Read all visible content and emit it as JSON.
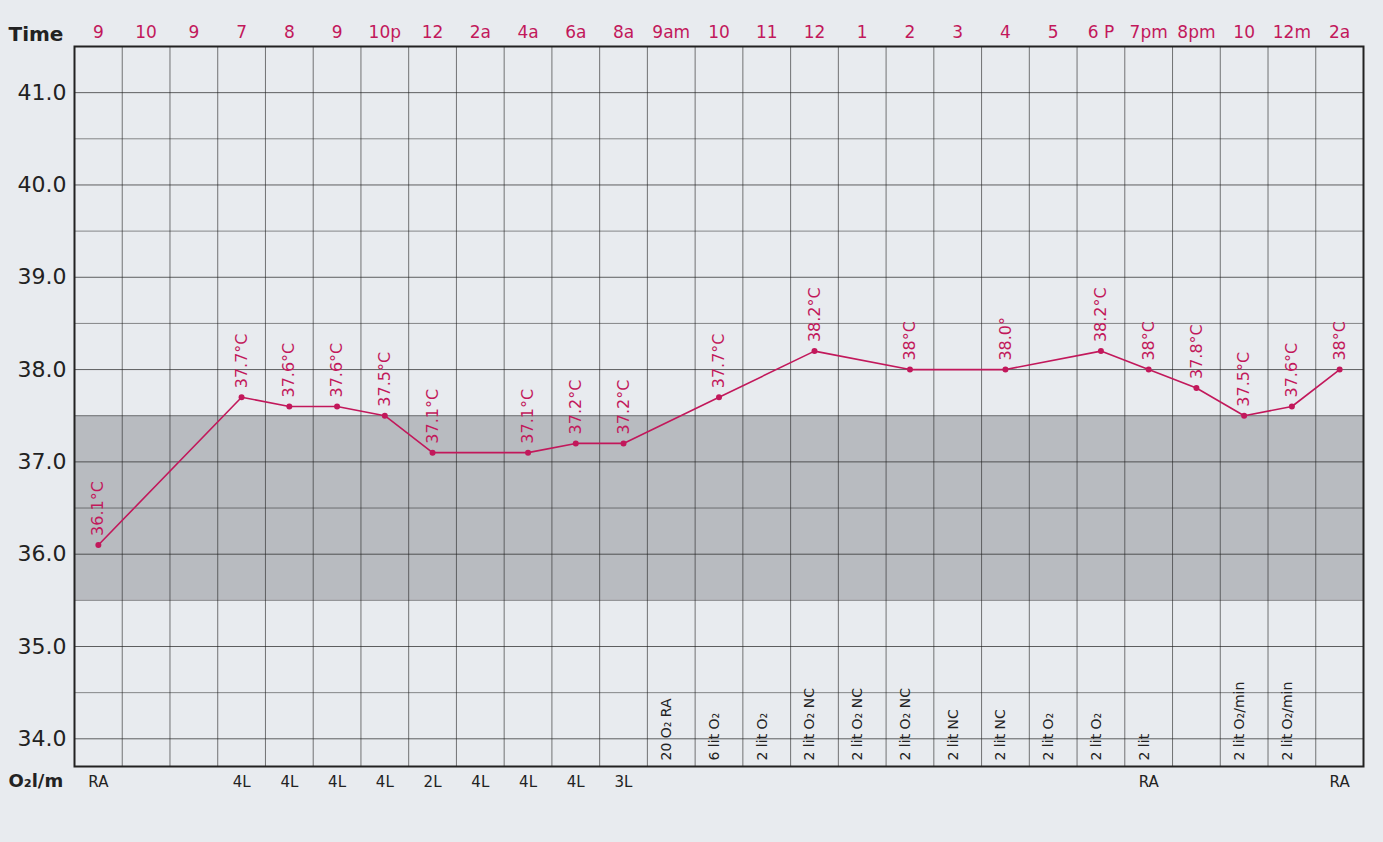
{
  "chart_data": {
    "type": "line",
    "x_label": "Time",
    "categories": [
      "9",
      "10",
      "9",
      "7",
      "8",
      "9",
      "10p",
      "12",
      "2a",
      "4a",
      "6a",
      "8a",
      "9am",
      "10",
      "11",
      "12",
      "1",
      "2",
      "3",
      "4",
      "5",
      "6 P",
      "7pm",
      "8pm",
      "10",
      "12m",
      "2a"
    ],
    "values": [
      36.1,
      null,
      null,
      37.7,
      37.6,
      37.6,
      37.5,
      37.1,
      null,
      37.1,
      37.2,
      37.2,
      null,
      37.7,
      null,
      38.2,
      null,
      38,
      null,
      38.0,
      null,
      38.2,
      38,
      37.8,
      37.5,
      37.6,
      38
    ],
    "value_labels": [
      "36.1°C",
      null,
      null,
      "37.7°C",
      "37.6°C",
      "37.6°C",
      "37.5°C",
      "37.1°C",
      null,
      "37.1°C",
      "37.2°C",
      "37.2°C",
      null,
      "37.7°C",
      null,
      "38.2°C",
      null,
      "38°C",
      null,
      "38.0°",
      null,
      "38.2°C",
      "38°C",
      "37.8°C",
      "37.5°C",
      "37.6°C",
      "38°C"
    ],
    "color": "#c2185b",
    "marker": "dot",
    "data_labels": true,
    "grid": true,
    "ylim": [
      33.7,
      41.5
    ],
    "yticks": [
      34,
      35,
      36,
      37,
      38,
      39,
      40,
      41
    ],
    "normal_range": [
      35.5,
      37.5
    ],
    "row_label": "O₂l/m",
    "row_values": [
      "RA",
      null,
      null,
      "4L",
      "4L",
      "4L",
      "4L",
      "2L",
      "4L",
      "4L",
      "4L",
      "3L",
      null,
      null,
      null,
      null,
      null,
      null,
      null,
      null,
      null,
      null,
      "RA",
      null,
      null,
      null,
      "RA"
    ],
    "notes": [
      null,
      null,
      null,
      null,
      null,
      null,
      null,
      null,
      null,
      null,
      null,
      null,
      "20 O₂ RA",
      "6 lit O₂",
      "2 lit O₂",
      "2 lit O₂ NC",
      "2 lit O₂ NC",
      "2 lit O₂ NC",
      "2 lit NC",
      "2 lit NC",
      "2 lit O₂",
      "2 lit O₂",
      "2 lit",
      null,
      "2 lit O₂/min",
      "2 lit O₂/min",
      null
    ]
  }
}
